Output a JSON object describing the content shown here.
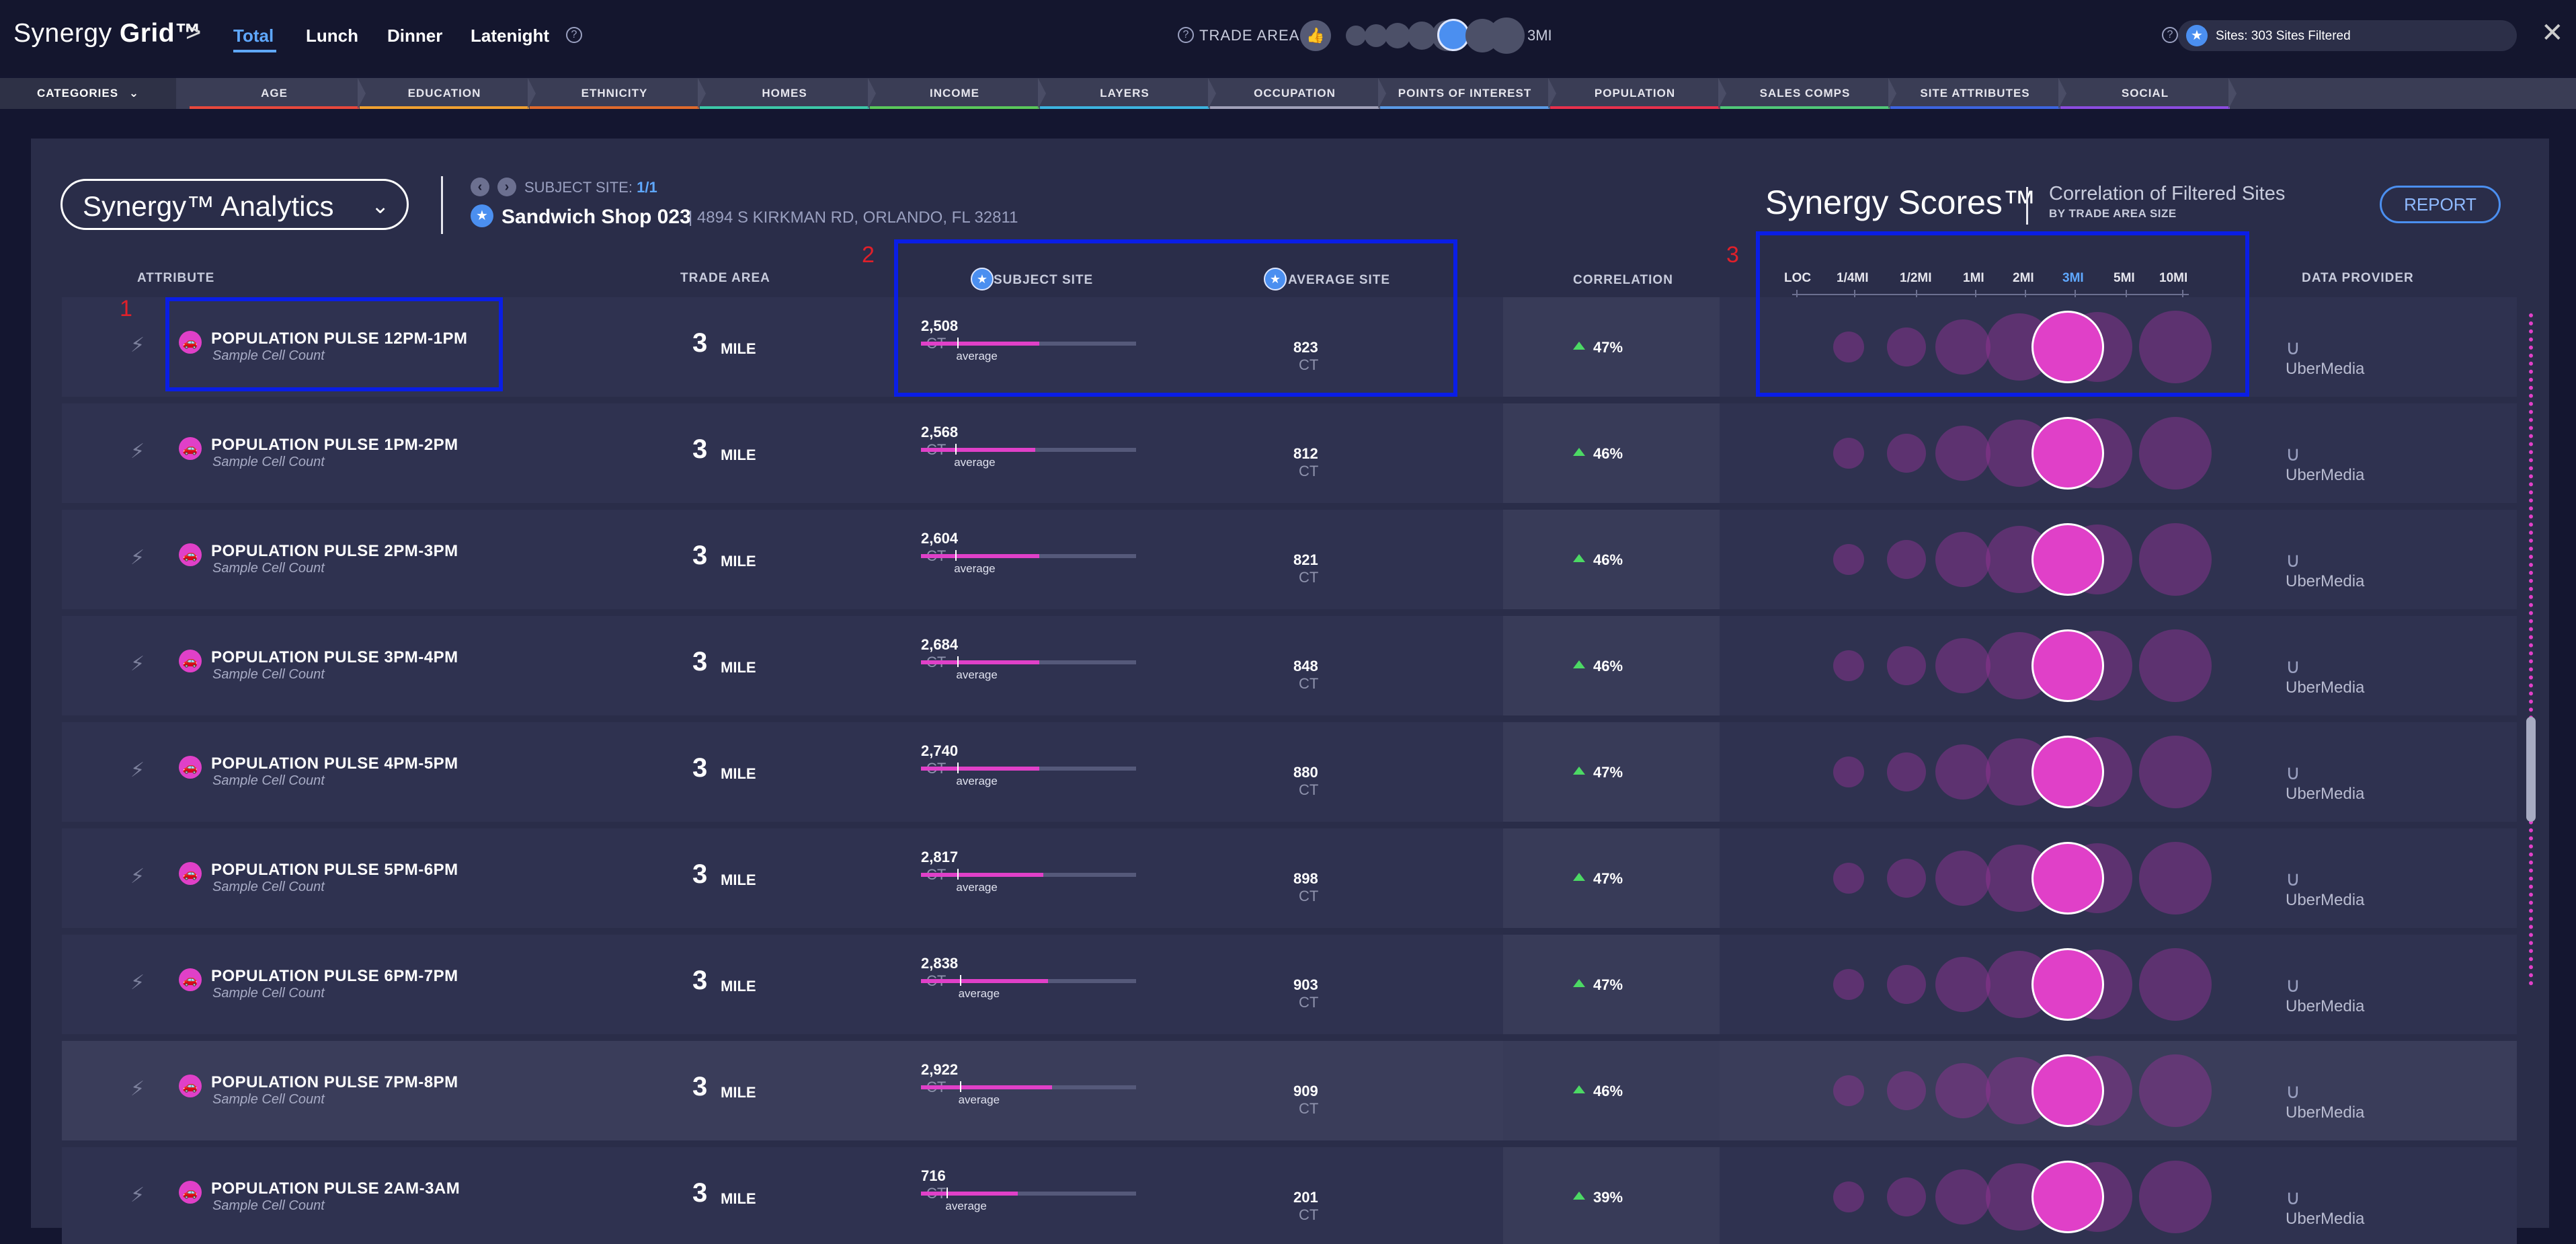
{
  "header": {
    "logo_light": "Synergy ",
    "logo_bold": "Grid™",
    "logo_chevron": ">",
    "tabs": [
      "Total",
      "Lunch",
      "Dinner",
      "Latenight"
    ],
    "trade_area_label": "TRADE AREA",
    "trade_area_value": "3MI",
    "sites_filter": "Sites: 303 Sites Filtered"
  },
  "categories": {
    "button_label": "CATEGORIES",
    "items": [
      {
        "label": "AGE",
        "color": "#e8483c"
      },
      {
        "label": "EDUCATION",
        "color": "#f0a030"
      },
      {
        "label": "ETHNICITY",
        "color": "#e06a2c"
      },
      {
        "label": "HOMES",
        "color": "#3cc8a8"
      },
      {
        "label": "INCOME",
        "color": "#5ac85a"
      },
      {
        "label": "LAYERS",
        "color": "#3cb4e0"
      },
      {
        "label": "OCCUPATION",
        "color": "#a0a0b8"
      },
      {
        "label": "POINTS OF INTEREST",
        "color": "#5a9ae6"
      },
      {
        "label": "POPULATION",
        "color": "#e8304c"
      },
      {
        "label": "SALES COMPS",
        "color": "#50c878"
      },
      {
        "label": "SITE ATTRIBUTES",
        "color": "#3c64e0"
      },
      {
        "label": "SOCIAL",
        "color": "#8c4ce0"
      }
    ]
  },
  "analytics": {
    "dropdown_label": "Synergy™ Analytics",
    "subject_site_label": "SUBJECT SITE:",
    "subject_site_count": "1/1",
    "site_name": "Sandwich Shop 023",
    "site_address": "| 4894 S KIRKMAN RD, ORLANDO, FL 32811"
  },
  "scores": {
    "title": "Synergy Scores™",
    "subtitle": "Correlation of Filtered Sites",
    "subtitle2": "BY TRADE AREA SIZE",
    "report_button": "REPORT",
    "distances": [
      "LOC",
      "1/4MI",
      "1/2MI",
      "1MI",
      "2MI",
      "3MI",
      "5MI",
      "10MI"
    ],
    "active_distance": "3MI"
  },
  "columns": {
    "attribute": "ATTRIBUTE",
    "trade_area": "TRADE AREA",
    "subject_site": "SUBJECT SITE",
    "average_site": "AVERAGE SITE",
    "correlation": "CORRELATION",
    "data_provider": "DATA PROVIDER"
  },
  "rows": [
    {
      "name": "POPULATION PULSE 12PM-1PM",
      "sub": "Sample Cell Count",
      "ta_num": "3",
      "ta_unit": "MILE",
      "subject": "2,508",
      "subject_unit": "CT",
      "bar_fraction": 0.55,
      "avg_fraction": 0.17,
      "avg_label": "average",
      "average": "823",
      "average_unit": "CT",
      "correlation": "47%",
      "provider": "UberMedia"
    },
    {
      "name": "POPULATION PULSE 1PM-2PM",
      "sub": "Sample Cell Count",
      "ta_num": "3",
      "ta_unit": "MILE",
      "subject": "2,568",
      "subject_unit": "CT",
      "bar_fraction": 0.53,
      "avg_fraction": 0.16,
      "avg_label": "average",
      "average": "812",
      "average_unit": "CT",
      "correlation": "46%",
      "provider": "UberMedia"
    },
    {
      "name": "POPULATION PULSE 2PM-3PM",
      "sub": "Sample Cell Count",
      "ta_num": "3",
      "ta_unit": "MILE",
      "subject": "2,604",
      "subject_unit": "CT",
      "bar_fraction": 0.55,
      "avg_fraction": 0.16,
      "avg_label": "average",
      "average": "821",
      "average_unit": "CT",
      "correlation": "46%",
      "provider": "UberMedia"
    },
    {
      "name": "POPULATION PULSE 3PM-4PM",
      "sub": "Sample Cell Count",
      "ta_num": "3",
      "ta_unit": "MILE",
      "subject": "2,684",
      "subject_unit": "CT",
      "bar_fraction": 0.55,
      "avg_fraction": 0.17,
      "avg_label": "average",
      "average": "848",
      "average_unit": "CT",
      "correlation": "46%",
      "provider": "UberMedia"
    },
    {
      "name": "POPULATION PULSE 4PM-5PM",
      "sub": "Sample Cell Count",
      "ta_num": "3",
      "ta_unit": "MILE",
      "subject": "2,740",
      "subject_unit": "CT",
      "bar_fraction": 0.55,
      "avg_fraction": 0.17,
      "avg_label": "average",
      "average": "880",
      "average_unit": "CT",
      "correlation": "47%",
      "provider": "UberMedia"
    },
    {
      "name": "POPULATION PULSE 5PM-6PM",
      "sub": "Sample Cell Count",
      "ta_num": "3",
      "ta_unit": "MILE",
      "subject": "2,817",
      "subject_unit": "CT",
      "bar_fraction": 0.57,
      "avg_fraction": 0.17,
      "avg_label": "average",
      "average": "898",
      "average_unit": "CT",
      "correlation": "47%",
      "provider": "UberMedia"
    },
    {
      "name": "POPULATION PULSE 6PM-7PM",
      "sub": "Sample Cell Count",
      "ta_num": "3",
      "ta_unit": "MILE",
      "subject": "2,838",
      "subject_unit": "CT",
      "bar_fraction": 0.59,
      "avg_fraction": 0.18,
      "avg_label": "average",
      "average": "903",
      "average_unit": "CT",
      "correlation": "47%",
      "provider": "UberMedia"
    },
    {
      "name": "POPULATION PULSE 7PM-8PM",
      "sub": "Sample Cell Count",
      "ta_num": "3",
      "ta_unit": "MILE",
      "subject": "2,922",
      "subject_unit": "CT",
      "bar_fraction": 0.61,
      "avg_fraction": 0.18,
      "avg_label": "average",
      "average": "909",
      "average_unit": "CT",
      "correlation": "46%",
      "provider": "UberMedia"
    },
    {
      "name": "POPULATION PULSE 2AM-3AM",
      "sub": "Sample Cell Count",
      "ta_num": "3",
      "ta_unit": "MILE",
      "subject": "716",
      "subject_unit": "CT",
      "bar_fraction": 0.45,
      "avg_fraction": 0.12,
      "avg_label": "average",
      "average": "201",
      "average_unit": "CT",
      "correlation": "39%",
      "provider": "UberMedia"
    }
  ],
  "annotations": [
    "1",
    "2",
    "3"
  ]
}
